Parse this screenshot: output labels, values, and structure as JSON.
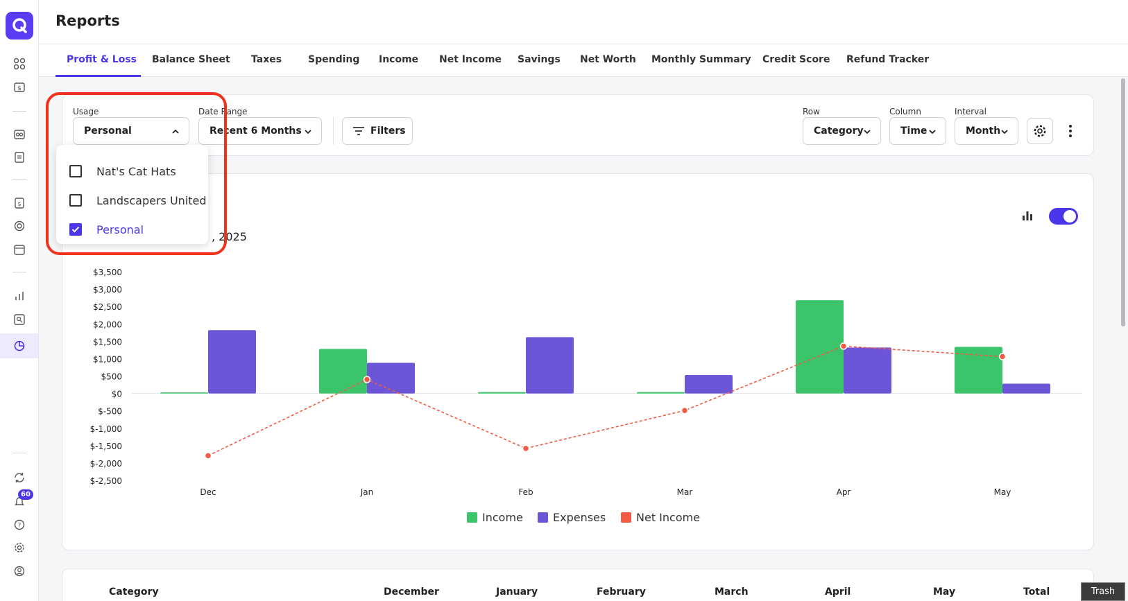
{
  "header": {
    "title": "Reports"
  },
  "tabs": [
    {
      "label": "Profit & Loss",
      "active": true
    },
    {
      "label": "Balance Sheet"
    },
    {
      "label": "Taxes"
    },
    {
      "label": "Spending"
    },
    {
      "label": "Income"
    },
    {
      "label": "Net Income"
    },
    {
      "label": "Savings"
    },
    {
      "label": "Net Worth"
    },
    {
      "label": "Monthly Summary"
    },
    {
      "label": "Credit Score"
    },
    {
      "label": "Refund Tracker"
    }
  ],
  "filters": {
    "usage_label": "Usage",
    "usage_value": "Personal",
    "date_label": "Date Range",
    "date_value": "Recent 6 Months",
    "filters_button": "Filters",
    "row_label": "Row",
    "row_value": "Category",
    "column_label": "Column",
    "column_value": "Time",
    "interval_label": "Interval",
    "interval_value": "Month"
  },
  "usage_dropdown": {
    "options": [
      {
        "label": "Nat's Cat Hats",
        "checked": false
      },
      {
        "label": "Landscapers United",
        "checked": false
      },
      {
        "label": "Personal",
        "checked": true
      }
    ]
  },
  "chart_subtitle_fragment": ", 2025",
  "sidebar": {
    "notification_count": "60"
  },
  "colors": {
    "accent": "#4a35e8",
    "income": "#3cc46a",
    "expenses": "#6d55d8",
    "net_income": "#f25a45",
    "highlight": "#f0321c"
  },
  "chart_data": {
    "type": "bar",
    "categories": [
      "Dec",
      "Jan",
      "Feb",
      "Mar",
      "Apr",
      "May"
    ],
    "series": [
      {
        "name": "Income",
        "type": "bar",
        "values": [
          30,
          1280,
          40,
          40,
          2680,
          1340
        ]
      },
      {
        "name": "Expenses",
        "type": "bar",
        "values": [
          1820,
          880,
          1620,
          530,
          1320,
          280
        ]
      },
      {
        "name": "Net Income",
        "type": "line",
        "values": [
          -1790,
          400,
          -1580,
          -490,
          1360,
          1060
        ]
      }
    ],
    "y_ticks": [
      "$3,500",
      "$3,000",
      "$2,500",
      "$2,000",
      "$1,500",
      "$1,000",
      "$500",
      "$0",
      "$-500",
      "$-1,000",
      "$-1,500",
      "$-2,000",
      "$-2,500"
    ],
    "ylim": [
      -2500,
      3500
    ],
    "legend_position": "bottom"
  },
  "table": {
    "headers": [
      "Category",
      "December",
      "January",
      "February",
      "March",
      "April",
      "May",
      "Total"
    ]
  },
  "trash_label": "Trash"
}
